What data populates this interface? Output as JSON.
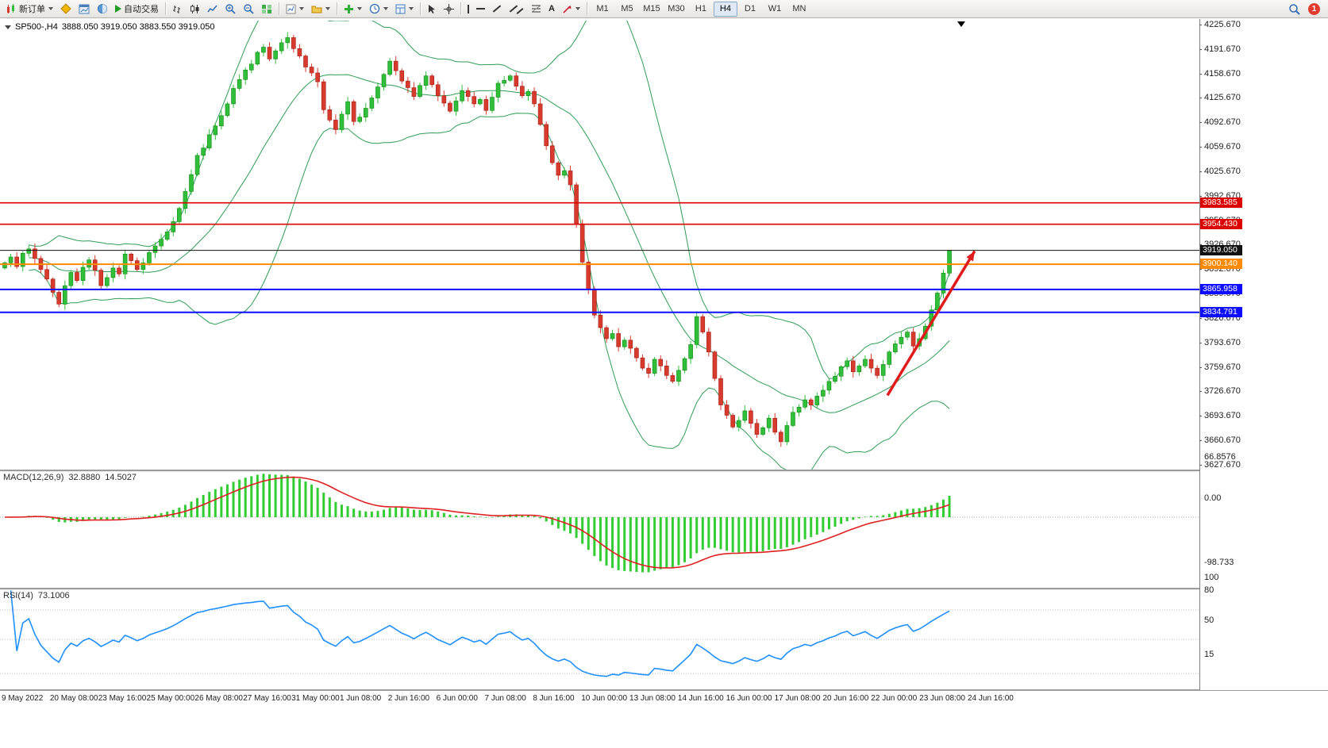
{
  "toolbar": {
    "new_order_label": "新订单",
    "auto_trading_label": "自动交易",
    "text_tool_label": "A",
    "timeframes": [
      "M1",
      "M5",
      "M15",
      "M30",
      "H1",
      "H4",
      "D1",
      "W1",
      "MN"
    ],
    "active_timeframe": "H4",
    "notification_count": "1"
  },
  "header": {
    "symbol": "SP500-,H4",
    "ohlc": "3888.050 3919.050 3883.550 3919.050"
  },
  "chart_data": {
    "type": "candlestick",
    "symbol": "SP500-",
    "timeframe": "H4",
    "up_color": "#2fbf3a",
    "down_color": "#d93a2e",
    "wick_up": "#128a12",
    "wick_down": "#a02015",
    "bollinger_color": "#2e9e54",
    "price_axis": {
      "max": 4225.67,
      "min": 3627.67,
      "tick_labels": [
        "4225.670",
        "4191.670",
        "4158.670",
        "4125.670",
        "4092.670",
        "4059.670",
        "4025.670",
        "3992.670",
        "3959.670",
        "3926.670",
        "3892.670",
        "3859.670",
        "3826.670",
        "3793.670",
        "3759.670",
        "3726.670",
        "3693.670",
        "3660.670",
        "3627.670"
      ]
    },
    "time_axis": [
      "9 May 2022",
      "20 May 08:00",
      "23 May 16:00",
      "25 May 00:00",
      "26 May 08:00",
      "27 May 16:00",
      "31 May 00:00",
      "1 Jun 08:00",
      "2 Jun 16:00",
      "6 Jun 00:00",
      "7 Jun 08:00",
      "8 Jun 16:00",
      "10 Jun 00:00",
      "13 Jun 08:00",
      "14 Jun 16:00",
      "16 Jun 00:00",
      "17 Jun 08:00",
      "20 Jun 16:00",
      "22 Jun 00:00",
      "23 Jun 08:00",
      "24 Jun 16:00"
    ],
    "levels": [
      {
        "price": 3983.585,
        "label": "3983.585",
        "color": "#dd0000",
        "line_width": 1.6
      },
      {
        "price": 3954.43,
        "label": "3954.430",
        "color": "#dd0000",
        "line_width": 1.6
      },
      {
        "price": 3919.05,
        "label": "3919.050",
        "color": "#111111",
        "line_width": 1
      },
      {
        "price": 3900.14,
        "label": "3900.140",
        "color": "#ff8a00",
        "line_width": 2
      },
      {
        "price": 3865.958,
        "label": "3865.958",
        "color": "#0d0dff",
        "line_width": 2
      },
      {
        "price": 3834.791,
        "label": "3834.791",
        "color": "#0d0dff",
        "line_width": 2
      }
    ],
    "first_open": 3895,
    "closes": [
      3902,
      3910,
      3897,
      3915,
      3921,
      3908,
      3893,
      3880,
      3862,
      3846,
      3871,
      3889,
      3878,
      3896,
      3906,
      3892,
      3871,
      3882,
      3895,
      3887,
      3914,
      3905,
      3893,
      3902,
      3916,
      3925,
      3934,
      3944,
      3958,
      3976,
      3999,
      4022,
      4048,
      4058,
      4076,
      4088,
      4102,
      4118,
      4139,
      4151,
      4164,
      4172,
      4188,
      4195,
      4179,
      4190,
      4201,
      4208,
      4193,
      4183,
      4168,
      4160,
      4148,
      4110,
      4096,
      4083,
      4104,
      4121,
      4094,
      4100,
      4112,
      4126,
      4141,
      4158,
      4176,
      4163,
      4149,
      4140,
      4128,
      4143,
      4156,
      4144,
      4129,
      4119,
      4108,
      4122,
      4136,
      4128,
      4118,
      4124,
      4109,
      4127,
      4146,
      4150,
      4156,
      4142,
      4129,
      4135,
      4118,
      4090,
      4061,
      4038,
      4021,
      4027,
      4008,
      3955,
      3903,
      3866,
      3831,
      3814,
      3799,
      3806,
      3788,
      3797,
      3786,
      3773,
      3759,
      3752,
      3771,
      3762,
      3749,
      3741,
      3756,
      3772,
      3791,
      3829,
      3808,
      3781,
      3745,
      3709,
      3695,
      3679,
      3688,
      3701,
      3684,
      3669,
      3678,
      3691,
      3672,
      3659,
      3681,
      3699,
      3706,
      3716,
      3709,
      3721,
      3729,
      3741,
      3748,
      3761,
      3769,
      3754,
      3762,
      3771,
      3759,
      3749,
      3764,
      3781,
      3792,
      3801,
      3808,
      3789,
      3799,
      3816,
      3838,
      3861,
      3888.05,
      3919.05
    ],
    "last_candle": {
      "open": 3888.05,
      "high": 3919.05,
      "low": 3883.55,
      "close": 3919.05
    },
    "indicators": {
      "bollinger": {
        "period": 20,
        "deviation": 2
      },
      "macd": {
        "label": "MACD(12,26,9)",
        "value_main": "32.8880",
        "value_signal": "14.5027",
        "axis_labels": [
          "66.8576",
          "0.00",
          "-98.733"
        ],
        "hist_color": "#32cd32",
        "signal_color": "#e02020"
      },
      "rsi": {
        "label": "RSI(14)",
        "value": "73.1006",
        "axis_labels": [
          "100",
          "80",
          "50",
          "15"
        ],
        "levels": [
          80,
          50,
          15
        ],
        "color": "#1e90ff"
      }
    },
    "trend_arrow": {
      "from_bar": 146.7,
      "from_price": 3722,
      "to_bar": 161.2,
      "to_price": 3918,
      "color": "#e01b1b"
    }
  }
}
